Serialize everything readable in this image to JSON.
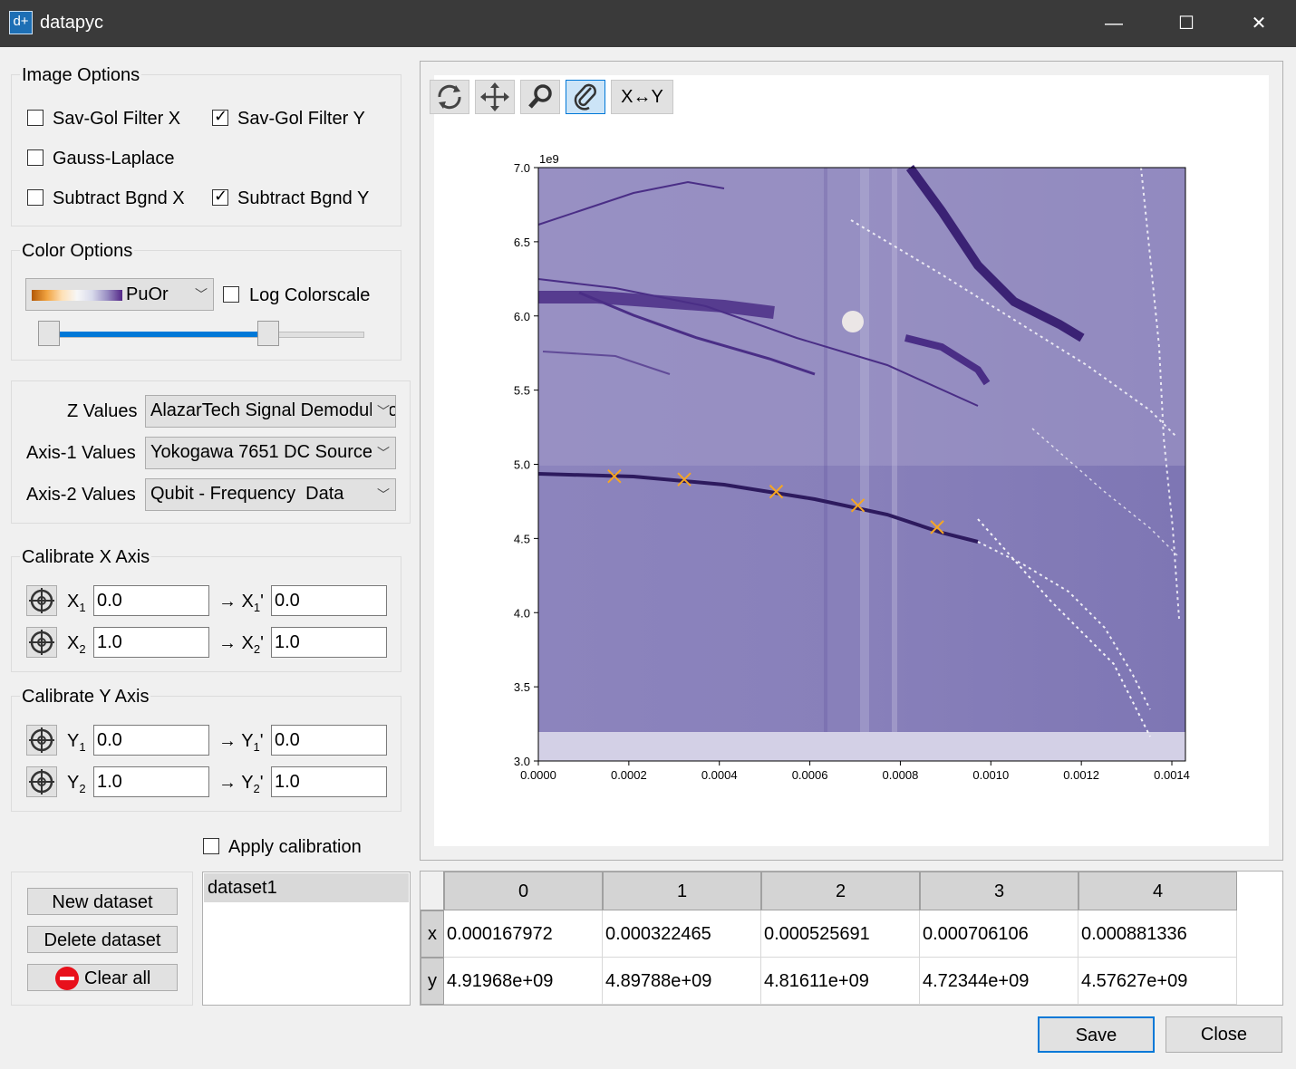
{
  "window": {
    "title": "datapyc",
    "icon": "d+"
  },
  "image_options": {
    "title": "Image Options",
    "savgol_x": {
      "label": "Sav-Gol Filter X",
      "checked": false
    },
    "savgol_y": {
      "label": "Sav-Gol Filter Y",
      "checked": true
    },
    "gauss": {
      "label": "Gauss-Laplace",
      "checked": false
    },
    "bgnd_x": {
      "label": "Subtract Bgnd X",
      "checked": false
    },
    "bgnd_y": {
      "label": "Subtract Bgnd Y",
      "checked": true
    }
  },
  "color_options": {
    "title": "Color Options",
    "colormap": "PuOr",
    "log_label": "Log Colorscale",
    "log_checked": false,
    "range_low": 0.0,
    "range_high": 0.72
  },
  "values": {
    "z_label": "Z Values",
    "z_value": "AlazarTech Signal Demodulator",
    "axis1_label": "Axis-1 Values",
    "axis1_value": "Yokogawa 7651 DC Source",
    "axis2_label": "Axis-2 Values",
    "axis2_value": "Qubit - Frequency  Data"
  },
  "calib_x": {
    "title": "Calibrate X Axis",
    "x1": "X",
    "x1_sub": "1",
    "x1_val": "0.0",
    "x1p": "→ X",
    "x1p_sub": "1",
    "x1p_prime": "'",
    "x1p_val": "0.0",
    "x2": "X",
    "x2_sub": "2",
    "x2_val": "1.0",
    "x2p": "→ X",
    "x2p_sub": "2",
    "x2p_prime": "'",
    "x2p_val": "1.0"
  },
  "calib_y": {
    "title": "Calibrate Y Axis",
    "y1": "Y",
    "y1_sub": "1",
    "y1_val": "0.0",
    "y1p": "→ Y",
    "y1p_sub": "1",
    "y1p_prime": "'",
    "y1p_val": "0.0",
    "y2": "Y",
    "y2_sub": "2",
    "y2_val": "1.0",
    "y2p": "→ Y",
    "y2p_sub": "2",
    "y2p_prime": "'",
    "y2p_val": "1.0"
  },
  "apply_calibration": {
    "label": "Apply calibration",
    "checked": false
  },
  "datasets": {
    "new": "New dataset",
    "delete": "Delete dataset",
    "clear": "Clear all",
    "items": [
      "dataset1"
    ]
  },
  "toolbar": {
    "swap_label": "X↔Y"
  },
  "chart_data": {
    "type": "heatmap",
    "colormap": "PuOr",
    "y_offset_label": "1e9",
    "xlim": [
      0.0,
      0.00143
    ],
    "ylim": [
      3000000000.0,
      7000000000.0
    ],
    "x_ticks": [
      "0.0000",
      "0.0002",
      "0.0004",
      "0.0006",
      "0.0008",
      "0.0010",
      "0.0012",
      "0.0014"
    ],
    "y_ticks": [
      "3.0",
      "3.5",
      "4.0",
      "4.5",
      "5.0",
      "5.5",
      "6.0",
      "6.5",
      "7.0"
    ],
    "markers": {
      "x": [
        0.000167972,
        0.000322465,
        0.000525691,
        0.000706106,
        0.000881336
      ],
      "y": [
        4919680000.0,
        4897880000.0,
        4816110000.0,
        4723440000.0,
        4576270000.0
      ]
    }
  },
  "table": {
    "columns": [
      "0",
      "1",
      "2",
      "3",
      "4"
    ],
    "row_x_label": "x",
    "row_y_label": "y",
    "x": [
      "0.000167972",
      "0.000322465",
      "0.000525691",
      "0.000706106",
      "0.000881336"
    ],
    "y": [
      "4.91968e+09",
      "4.89788e+09",
      "4.81611e+09",
      "4.72344e+09",
      "4.57627e+09"
    ]
  },
  "footer": {
    "save": "Save",
    "close": "Close"
  }
}
